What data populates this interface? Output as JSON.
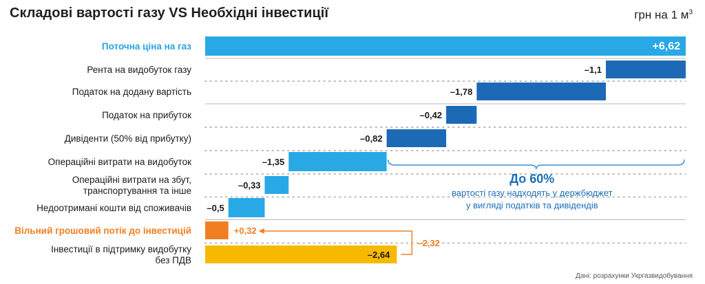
{
  "header": {
    "title": "Складові вартості газу VS Необхідні інвестиції",
    "unit_prefix": "грн на 1 м",
    "unit_sup": "3"
  },
  "source": "Дані: розрахунки Укргазвидобування",
  "colors": {
    "light_blue": "#29a8e6",
    "dark_blue": "#1c6ab5",
    "orange": "#f07f22",
    "yellow": "#f7b900",
    "bracket": "#3b8fd4",
    "arrow": "#f07f22"
  },
  "chart_data": {
    "type": "waterfall",
    "title": "Складові вартості газу VS Необхідні інвестиції",
    "unit": "грн на 1 м3",
    "categories": [
      "Поточна ціна на газ",
      "Рента на видобуток газу",
      "Податок на додану вартість",
      "Податок на прибуток",
      "Дивіденти (50% від прибутку)",
      "Операційні витрати на видобуток",
      "Операційні витрати на збут, транспортування та інше",
      "Недоотримані кошти від споживачів",
      "Вільний грошовий потік до інвестицій",
      "Інвестиції в підтримку видобутку без ПДВ"
    ],
    "label_lines": [
      [
        "Поточна ціна на газ"
      ],
      [
        "Рента на видобуток газу"
      ],
      [
        "Податок на додану вартість"
      ],
      [
        "Податок на прибуток"
      ],
      [
        "Дивіденти (50% від прибутку)"
      ],
      [
        "Операційні витрати на видобуток"
      ],
      [
        "Операційні витрати на збут,",
        "транспортування та інше"
      ],
      [
        "Недоотримані кошти від споживачів"
      ],
      [
        "Вільний грошовий потік до інвестицій"
      ],
      [
        "Інвестиції в підтримку видобутку",
        "без ПДВ"
      ]
    ],
    "values": [
      6.62,
      -1.1,
      -1.78,
      -0.42,
      -0.82,
      -1.35,
      -0.33,
      -0.5,
      0.32,
      -2.64
    ],
    "value_labels": [
      "+6,62",
      "–1,1",
      "–1,78",
      "–0,42",
      "–0,82",
      "–1,35",
      "–0,33",
      "–0,5",
      "+0,32",
      "–2,64"
    ],
    "bar_colors": [
      "light_blue",
      "dark_blue",
      "dark_blue",
      "dark_blue",
      "dark_blue",
      "light_blue",
      "light_blue",
      "light_blue",
      "orange",
      "yellow"
    ],
    "label_styles": [
      "blue",
      "normal",
      "normal",
      "normal",
      "normal",
      "normal",
      "normal",
      "normal",
      "orange",
      "normal"
    ],
    "gap_annotation": "–2,32",
    "bracket_note": {
      "headline": "До 60%",
      "line1": "вартості газу надходять у держбюджет",
      "line2": "у вигляді податків та дивідендів"
    }
  }
}
